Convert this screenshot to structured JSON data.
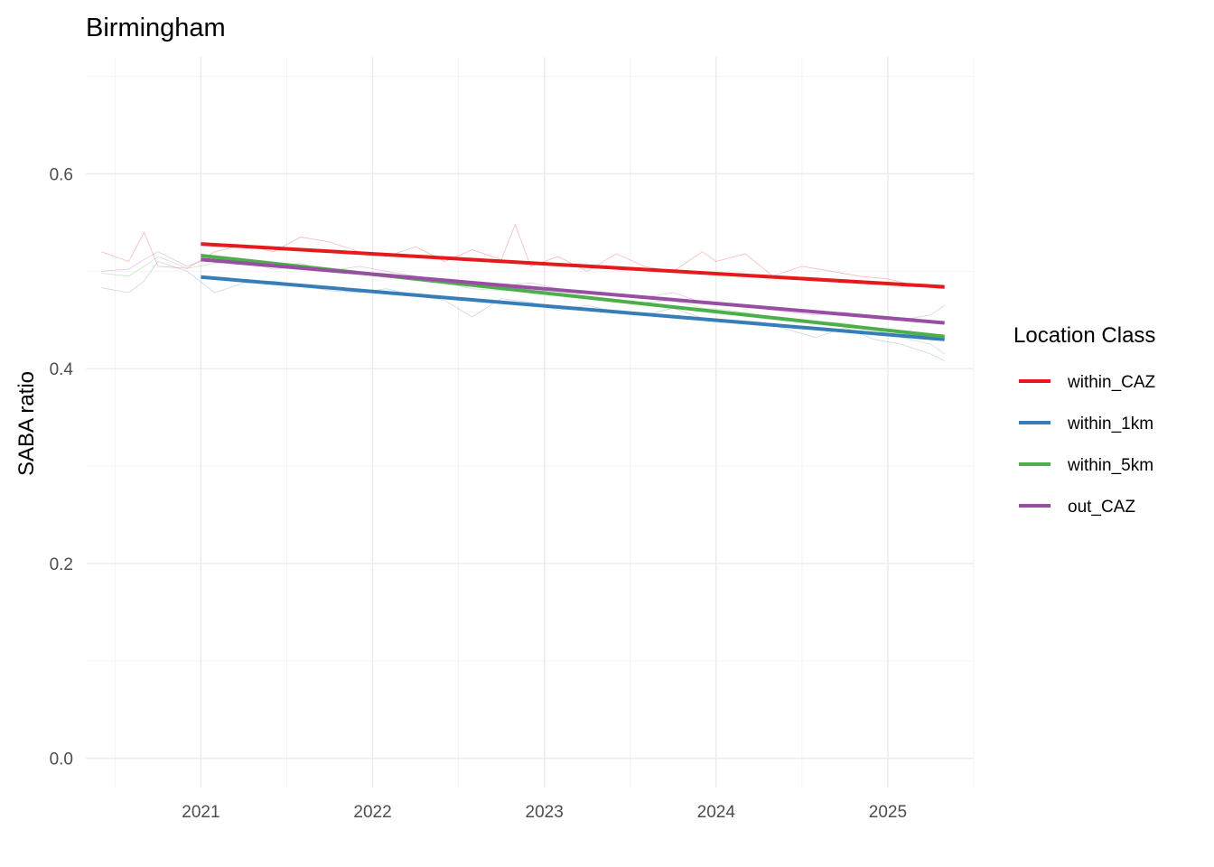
{
  "chart_data": {
    "type": "line",
    "title": "Birmingham",
    "xlabel": "",
    "ylabel": "SABA ratio",
    "xlim": [
      2020.33,
      2025.5
    ],
    "ylim": [
      -0.03,
      0.72
    ],
    "y_ticks": [
      0.0,
      0.2,
      0.4,
      0.6
    ],
    "y_tick_labels": [
      "0.0",
      "0.2",
      "0.4",
      "0.6"
    ],
    "x_ticks": [
      2021,
      2022,
      2023,
      2024,
      2025
    ],
    "x_tick_labels": [
      "2021",
      "2022",
      "2023",
      "2024",
      "2025"
    ],
    "grid": true,
    "legend_position": "right",
    "legend": {
      "title": "Location Class",
      "entries": [
        "within_CAZ",
        "within_1km",
        "within_5km",
        "out_CAZ"
      ]
    },
    "trend_series": [
      {
        "name": "within_CAZ",
        "color": "#e41a1c",
        "x": [
          2021.0,
          2025.33
        ],
        "y": [
          0.528,
          0.484
        ]
      },
      {
        "name": "within_1km",
        "color": "#377eb8",
        "x": [
          2021.0,
          2025.33
        ],
        "y": [
          0.494,
          0.43
        ]
      },
      {
        "name": "within_5km",
        "color": "#4daf4a",
        "x": [
          2021.0,
          2025.33
        ],
        "y": [
          0.516,
          0.433
        ]
      },
      {
        "name": "out_CAZ",
        "color": "#984ea3",
        "x": [
          2021.0,
          2025.33
        ],
        "y": [
          0.512,
          0.447
        ]
      }
    ],
    "raw_series": [
      {
        "name": "within_CAZ",
        "color": "#e41a1c",
        "x": [
          2020.42,
          2020.58,
          2020.67,
          2020.75,
          2020.92,
          2021.08,
          2021.25,
          2021.42,
          2021.58,
          2021.75,
          2021.92,
          2022.08,
          2022.25,
          2022.42,
          2022.58,
          2022.75,
          2022.83,
          2022.92,
          2023.08,
          2023.25,
          2023.42,
          2023.58,
          2023.75,
          2023.92,
          2024.0,
          2024.17,
          2024.33,
          2024.5,
          2024.67,
          2024.83,
          2025.0,
          2025.17,
          2025.33
        ],
        "y": [
          0.52,
          0.51,
          0.54,
          0.505,
          0.503,
          0.52,
          0.527,
          0.52,
          0.535,
          0.53,
          0.52,
          0.515,
          0.525,
          0.51,
          0.522,
          0.512,
          0.548,
          0.505,
          0.515,
          0.5,
          0.518,
          0.505,
          0.5,
          0.52,
          0.51,
          0.518,
          0.495,
          0.505,
          0.5,
          0.495,
          0.492,
          0.485,
          0.482
        ]
      },
      {
        "name": "within_1km",
        "color": "#377eb8",
        "x": [
          2020.42,
          2020.58,
          2020.67,
          2020.75,
          2020.92,
          2021.08,
          2021.25,
          2021.42,
          2021.58,
          2021.75,
          2021.92,
          2022.08,
          2022.25,
          2022.42,
          2022.58,
          2022.75,
          2022.92,
          2023.08,
          2023.25,
          2023.42,
          2023.58,
          2023.75,
          2023.92,
          2024.08,
          2024.25,
          2024.42,
          2024.58,
          2024.75,
          2024.92,
          2025.08,
          2025.25,
          2025.33
        ],
        "y": [
          0.483,
          0.478,
          0.49,
          0.51,
          0.5,
          0.478,
          0.488,
          0.49,
          0.485,
          0.48,
          0.478,
          0.482,
          0.475,
          0.47,
          0.453,
          0.472,
          0.468,
          0.46,
          0.465,
          0.458,
          0.455,
          0.462,
          0.452,
          0.45,
          0.448,
          0.44,
          0.432,
          0.442,
          0.43,
          0.425,
          0.415,
          0.408
        ]
      },
      {
        "name": "within_5km",
        "color": "#4daf4a",
        "x": [
          2020.42,
          2020.58,
          2020.67,
          2020.75,
          2020.92,
          2021.08,
          2021.25,
          2021.42,
          2021.58,
          2021.75,
          2021.92,
          2022.08,
          2022.25,
          2022.42,
          2022.58,
          2022.75,
          2022.92,
          2023.08,
          2023.25,
          2023.42,
          2023.58,
          2023.75,
          2023.92,
          2024.08,
          2024.25,
          2024.42,
          2024.58,
          2024.75,
          2024.92,
          2025.08,
          2025.25,
          2025.33
        ],
        "y": [
          0.498,
          0.495,
          0.505,
          0.515,
          0.503,
          0.508,
          0.51,
          0.505,
          0.508,
          0.5,
          0.498,
          0.495,
          0.492,
          0.488,
          0.482,
          0.48,
          0.485,
          0.475,
          0.473,
          0.47,
          0.468,
          0.47,
          0.462,
          0.46,
          0.455,
          0.452,
          0.448,
          0.447,
          0.44,
          0.432,
          0.425,
          0.415
        ]
      },
      {
        "name": "out_CAZ",
        "color": "#984ea3",
        "x": [
          2020.42,
          2020.58,
          2020.67,
          2020.75,
          2020.92,
          2021.08,
          2021.25,
          2021.42,
          2021.58,
          2021.75,
          2021.92,
          2022.08,
          2022.25,
          2022.42,
          2022.58,
          2022.75,
          2022.92,
          2023.08,
          2023.25,
          2023.42,
          2023.58,
          2023.75,
          2023.92,
          2024.08,
          2024.25,
          2024.42,
          2024.58,
          2024.75,
          2024.92,
          2025.08,
          2025.25,
          2025.33
        ],
        "y": [
          0.5,
          0.502,
          0.512,
          0.52,
          0.505,
          0.515,
          0.51,
          0.502,
          0.505,
          0.5,
          0.505,
          0.5,
          0.495,
          0.49,
          0.486,
          0.485,
          0.488,
          0.482,
          0.478,
          0.475,
          0.473,
          0.478,
          0.468,
          0.465,
          0.462,
          0.458,
          0.455,
          0.458,
          0.452,
          0.45,
          0.455,
          0.465
        ]
      }
    ]
  }
}
